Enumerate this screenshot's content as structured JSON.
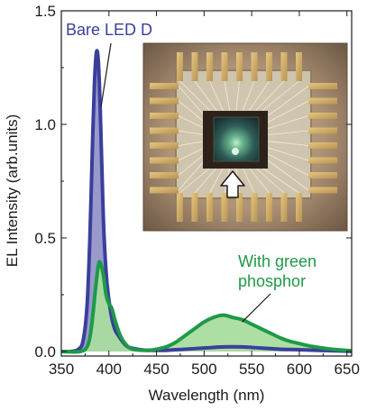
{
  "chart_data": {
    "type": "area",
    "xlabel": "Wavelength (nm)",
    "ylabel": "EL Intensity (arb.units)",
    "xlim": [
      350,
      655
    ],
    "ylim": [
      -0.02,
      1.5
    ],
    "x_ticks": [
      350,
      400,
      450,
      500,
      550,
      600,
      650
    ],
    "y_ticks": [
      0.0,
      0.5,
      1.0,
      1.5
    ],
    "y_tick_labels": [
      "0.0",
      "0.5",
      "1.0",
      "1.5"
    ],
    "grid": false,
    "series": [
      {
        "name": "Bare LED D",
        "color": "#3a3f9c",
        "fill": "#9494c8",
        "points": [
          [
            350,
            0.0
          ],
          [
            360,
            0.0
          ],
          [
            368,
            0.01
          ],
          [
            373,
            0.05
          ],
          [
            377,
            0.2
          ],
          [
            380,
            0.5
          ],
          [
            383,
            0.95
          ],
          [
            385,
            1.2
          ],
          [
            387,
            1.32
          ],
          [
            389,
            1.27
          ],
          [
            391,
            1.05
          ],
          [
            393,
            0.75
          ],
          [
            395,
            0.5
          ],
          [
            398,
            0.3
          ],
          [
            402,
            0.17
          ],
          [
            406,
            0.1
          ],
          [
            410,
            0.07
          ],
          [
            415,
            0.04
          ],
          [
            420,
            0.02
          ],
          [
            430,
            0.01
          ],
          [
            440,
            0.005
          ],
          [
            450,
            0.005
          ],
          [
            460,
            0.005
          ],
          [
            480,
            0.01
          ],
          [
            500,
            0.015
          ],
          [
            520,
            0.02
          ],
          [
            540,
            0.02
          ],
          [
            560,
            0.015
          ],
          [
            580,
            0.01
          ],
          [
            600,
            0.008
          ],
          [
            620,
            0.005
          ],
          [
            640,
            0.003
          ],
          [
            655,
            0.0
          ]
        ]
      },
      {
        "name": "With green phosphor",
        "color": "#1e9a46",
        "fill": "#a9dc9f",
        "points": [
          [
            350,
            0.0
          ],
          [
            370,
            0.0
          ],
          [
            378,
            0.03
          ],
          [
            382,
            0.12
          ],
          [
            386,
            0.28
          ],
          [
            389,
            0.38
          ],
          [
            391,
            0.39
          ],
          [
            394,
            0.34
          ],
          [
            397,
            0.25
          ],
          [
            400,
            0.21
          ],
          [
            403,
            0.19
          ],
          [
            407,
            0.13
          ],
          [
            412,
            0.07
          ],
          [
            418,
            0.03
          ],
          [
            425,
            0.01
          ],
          [
            440,
            0.005
          ],
          [
            450,
            0.01
          ],
          [
            460,
            0.02
          ],
          [
            470,
            0.04
          ],
          [
            480,
            0.07
          ],
          [
            490,
            0.1
          ],
          [
            500,
            0.13
          ],
          [
            510,
            0.15
          ],
          [
            520,
            0.16
          ],
          [
            530,
            0.15
          ],
          [
            540,
            0.14
          ],
          [
            550,
            0.12
          ],
          [
            560,
            0.1
          ],
          [
            570,
            0.08
          ],
          [
            580,
            0.06
          ],
          [
            590,
            0.045
          ],
          [
            600,
            0.035
          ],
          [
            610,
            0.025
          ],
          [
            620,
            0.018
          ],
          [
            630,
            0.012
          ],
          [
            640,
            0.008
          ],
          [
            655,
            0.003
          ]
        ]
      }
    ],
    "annotations": [
      {
        "text": "Bare LED D",
        "color": "#3a3f9c",
        "target": [
          389,
          1.08
        ]
      },
      {
        "text": "With green phosphor",
        "color": "#1e9a46",
        "lines": [
          "With green",
          "phosphor"
        ],
        "target": [
          540,
          0.13
        ]
      }
    ],
    "inset": {
      "content": "photograph of packaged LED chip with wire bonds and white arrow",
      "arrow_color": "#ffffff"
    }
  }
}
